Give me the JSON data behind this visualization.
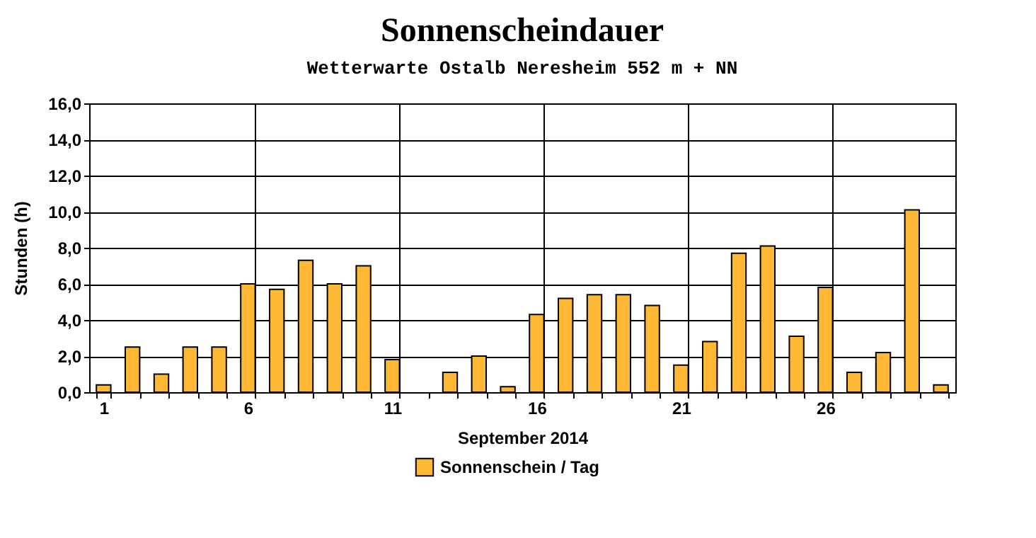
{
  "chart_data": {
    "type": "bar",
    "title": "Sonnenscheindauer",
    "subtitle": "Wetterwarte Ostalb Neresheim 552 m + NN",
    "xlabel": "September 2014",
    "ylabel": "Stunden  (h)",
    "categories": [
      "1",
      null,
      null,
      null,
      null,
      "6",
      null,
      null,
      null,
      null,
      "11",
      null,
      null,
      null,
      null,
      "16",
      null,
      null,
      null,
      null,
      "21",
      null,
      null,
      null,
      null,
      "26",
      null,
      null,
      null,
      null
    ],
    "series": [
      {
        "name": "Sonnenschein / Tag",
        "color": "#ffb833",
        "values": [
          0.4,
          2.5,
          1.0,
          2.5,
          2.5,
          6.0,
          5.7,
          7.3,
          6.0,
          7.0,
          1.8,
          0,
          1.1,
          2.0,
          0.3,
          4.3,
          5.2,
          5.4,
          5.4,
          4.8,
          1.5,
          2.8,
          7.7,
          8.1,
          3.1,
          5.8,
          1.1,
          2.2,
          10.1,
          0.4
        ]
      }
    ],
    "ylim": [
      0,
      16
    ],
    "yticks": [
      {
        "value": 0,
        "label": "0,0"
      },
      {
        "value": 2,
        "label": "2,0"
      },
      {
        "value": 4,
        "label": "4,0"
      },
      {
        "value": 6,
        "label": "6,0"
      },
      {
        "value": 8,
        "label": "8,0"
      },
      {
        "value": 10,
        "label": "10,0"
      },
      {
        "value": 12,
        "label": "12,0"
      },
      {
        "value": 14,
        "label": "14,0"
      },
      {
        "value": 16,
        "label": "16,0"
      }
    ],
    "grid": true,
    "legend": "bottom"
  }
}
